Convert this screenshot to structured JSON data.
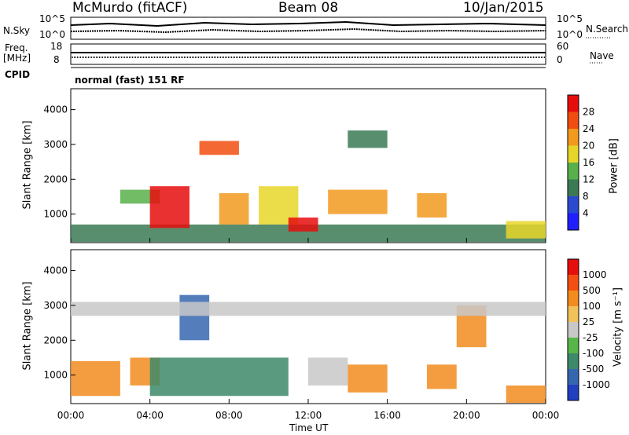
{
  "header": {
    "station": "McMurdo (fitACF)",
    "beam": "Beam 08",
    "date": "10/Jan/2015"
  },
  "strips": {
    "nsky_label": "N.Sky",
    "nsearch_label": "N.Search",
    "nsky_ticks": [
      "10^5",
      "10^0"
    ],
    "nsearch_ticks": [
      "10^5",
      "10^0"
    ],
    "freq_label": "Freq.",
    "freq_unit": "[MHz]",
    "freq_ticks": [
      "18",
      "8"
    ],
    "nave_label": "Nave",
    "nave_ticks": [
      "60",
      "0"
    ],
    "cpid_label": "CPID",
    "cpid_value": "normal (fast) 151 RF"
  },
  "chart_data": [
    {
      "type": "heatmap",
      "ylabel": "Slant Range [km]",
      "xlabel": "Time UT",
      "x_ticks": [
        "00:00",
        "04:00",
        "08:00",
        "12:00",
        "16:00",
        "20:00",
        "00:00"
      ],
      "y_ticks": [
        1000,
        2000,
        3000,
        4000
      ],
      "ylim": [
        180,
        4600
      ],
      "xlim_hours": [
        0,
        24
      ],
      "colorbar": {
        "label": "Power [dB]",
        "ticks": [
          "28",
          "24",
          "20",
          "16",
          "12",
          "8",
          "4"
        ],
        "colors": [
          "#1f1fff",
          "#2a4bd0",
          "#3b7a55",
          "#58b04a",
          "#e7d62a",
          "#f29a1e",
          "#f24d10",
          "#e60d0d"
        ]
      },
      "bands": [
        {
          "t0": 0.0,
          "t1": 24.0,
          "r0": 200,
          "r1": 700,
          "level": 2
        },
        {
          "t0": 2.5,
          "t1": 4.5,
          "r0": 1300,
          "r1": 1700,
          "level": 3
        },
        {
          "t0": 4.0,
          "t1": 6.0,
          "r0": 600,
          "r1": 1800,
          "level": 7
        },
        {
          "t0": 6.5,
          "t1": 8.5,
          "r0": 2700,
          "r1": 3100,
          "level": 6
        },
        {
          "t0": 7.5,
          "t1": 9.0,
          "r0": 700,
          "r1": 1600,
          "level": 5
        },
        {
          "t0": 9.5,
          "t1": 11.5,
          "r0": 700,
          "r1": 1800,
          "level": 4
        },
        {
          "t0": 11.0,
          "t1": 12.5,
          "r0": 500,
          "r1": 900,
          "level": 7
        },
        {
          "t0": 13.0,
          "t1": 16.0,
          "r0": 1000,
          "r1": 1700,
          "level": 5
        },
        {
          "t0": 14.0,
          "t1": 16.0,
          "r0": 2900,
          "r1": 3400,
          "level": 2
        },
        {
          "t0": 17.5,
          "t1": 19.0,
          "r0": 900,
          "r1": 1600,
          "level": 5
        },
        {
          "t0": 22.0,
          "t1": 24.0,
          "r0": 300,
          "r1": 800,
          "level": 4
        }
      ]
    },
    {
      "type": "heatmap",
      "ylabel": "Slant Range [km]",
      "xlabel": "Time UT",
      "x_ticks": [
        "00:00",
        "04:00",
        "08:00",
        "12:00",
        "16:00",
        "20:00",
        "00:00"
      ],
      "y_ticks": [
        1000,
        2000,
        3000,
        4000
      ],
      "ylim": [
        180,
        4600
      ],
      "xlim_hours": [
        0,
        24
      ],
      "colorbar": {
        "label": "Velocity [m s⁻¹]",
        "ticks": [
          "1000",
          "500",
          "100",
          "25",
          "-25",
          "-100",
          "-500",
          "-1000"
        ],
        "colors": [
          "#2040c0",
          "#3666b0",
          "#3d8a6a",
          "#56b64a",
          "#c8c8c8",
          "#f2c25a",
          "#f28c1e",
          "#f25010",
          "#e60d0d"
        ]
      },
      "bands": [
        {
          "t0": 0.0,
          "t1": 2.5,
          "r0": 400,
          "r1": 1400,
          "level": 6
        },
        {
          "t0": 3.0,
          "t1": 4.5,
          "r0": 700,
          "r1": 1500,
          "level": 6
        },
        {
          "t0": 4.0,
          "t1": 11.0,
          "r0": 400,
          "r1": 1500,
          "level": 2
        },
        {
          "t0": 5.5,
          "t1": 7.0,
          "r0": 2000,
          "r1": 3300,
          "level": 1
        },
        {
          "t0": 12.0,
          "t1": 14.0,
          "r0": 700,
          "r1": 1500,
          "level": 4
        },
        {
          "t0": 14.0,
          "t1": 16.0,
          "r0": 500,
          "r1": 1300,
          "level": 6
        },
        {
          "t0": 18.0,
          "t1": 19.5,
          "r0": 600,
          "r1": 1300,
          "level": 6
        },
        {
          "t0": 19.5,
          "t1": 21.0,
          "r0": 1800,
          "r1": 3000,
          "level": 6
        },
        {
          "t0": 22.0,
          "t1": 24.0,
          "r0": 200,
          "r1": 700,
          "level": 6
        },
        {
          "t0": 0.0,
          "t1": 24.0,
          "r0": 2700,
          "r1": 3100,
          "level": 4
        }
      ]
    }
  ]
}
